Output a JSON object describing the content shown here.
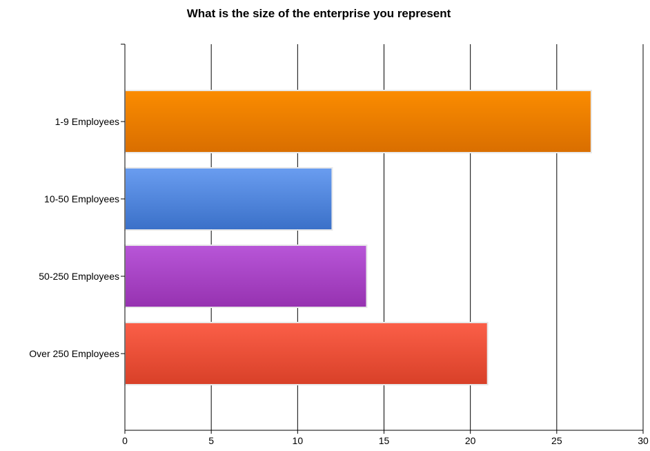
{
  "chart_data": {
    "type": "bar",
    "orientation": "horizontal",
    "title": "What is the size of the enterprise you represent",
    "xlabel": "",
    "ylabel": "",
    "categories": [
      "1-9 Employees",
      "10-50 Employees",
      "50-250 Employees",
      "Over 250 Employees"
    ],
    "values": [
      27,
      12,
      14,
      21
    ],
    "xlim": [
      0,
      30
    ],
    "xticks": [
      0,
      5,
      10,
      15,
      20,
      25,
      30
    ],
    "grid": "vertical",
    "legend": "none",
    "colors": [
      [
        "#fb8c00",
        "#d96e00"
      ],
      [
        "#6a9df0",
        "#3a70c8"
      ],
      [
        "#b856d8",
        "#9632b0"
      ],
      [
        "#fb5f48",
        "#d84028"
      ]
    ]
  }
}
